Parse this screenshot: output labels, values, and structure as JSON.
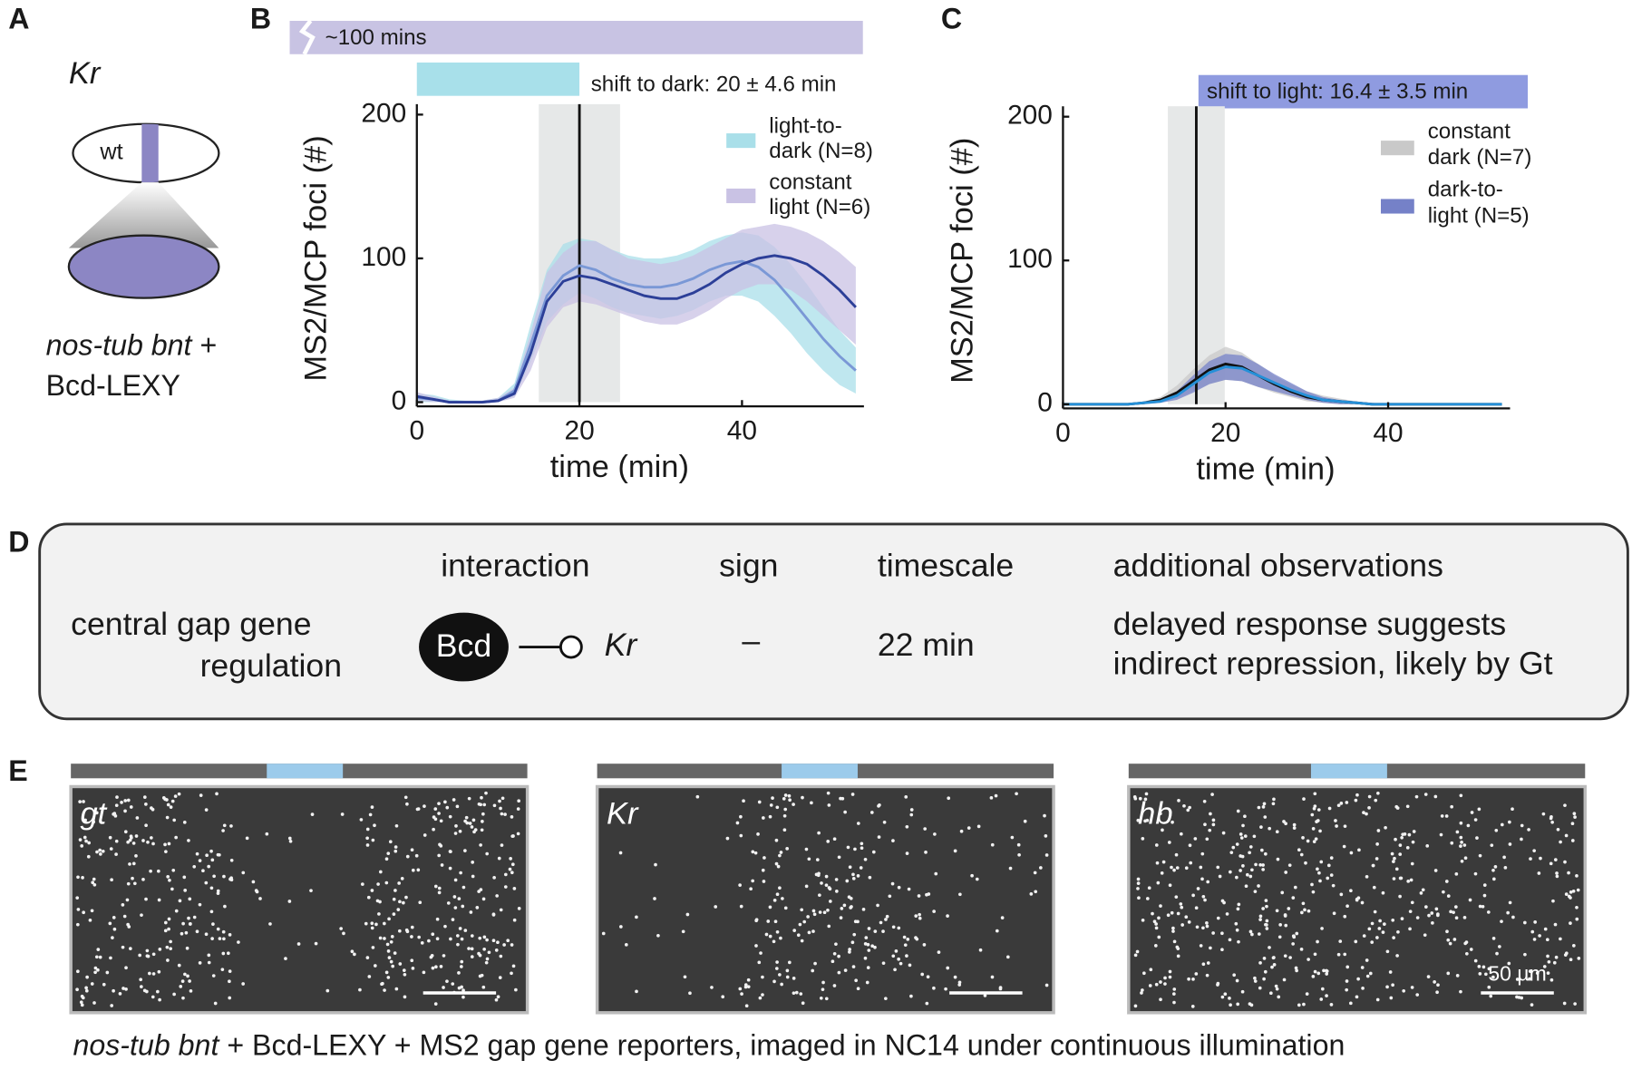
{
  "panel_labels": [
    "A",
    "B",
    "C",
    "D",
    "E"
  ],
  "panel_a": {
    "gene": "Kr",
    "embryo_label": "wt",
    "genotype_italic": "nos-tub bnt",
    "genotype_rest": " +",
    "construct": "Bcd-LEXY"
  },
  "chart_data": [
    {
      "type": "line",
      "timeline_label": "~100 mins",
      "shift_label": "shift to dark: 20 ± 4.6 min",
      "shift_time": 20,
      "shift_window": [
        15,
        25
      ],
      "shift_color": "#a8e0ea",
      "xlabel": "time (min)",
      "ylabel": "MS2/MCP foci (#)",
      "xlim": [
        0,
        55
      ],
      "ylim": [
        0,
        200
      ],
      "xticks": [
        0,
        20,
        40
      ],
      "yticks": [
        0,
        100,
        200
      ],
      "x": [
        0,
        2,
        4,
        6,
        8,
        10,
        12,
        14,
        16,
        18,
        20,
        22,
        24,
        26,
        28,
        30,
        32,
        34,
        36,
        38,
        40,
        42,
        44,
        46,
        48,
        50,
        52,
        54
      ],
      "series": [
        {
          "name": [
            "light-to-",
            "dark (N=8)"
          ],
          "color": "#7a98d6",
          "band_color": "#a9dfe9",
          "values": [
            3,
            2,
            0,
            0,
            0,
            1,
            8,
            40,
            74,
            88,
            95,
            92,
            86,
            82,
            80,
            80,
            82,
            86,
            92,
            96,
            98,
            94,
            85,
            72,
            58,
            44,
            32,
            22
          ],
          "lower": [
            0,
            0,
            0,
            0,
            0,
            0,
            4,
            28,
            56,
            68,
            76,
            72,
            66,
            62,
            60,
            58,
            60,
            64,
            70,
            74,
            74,
            70,
            60,
            48,
            34,
            22,
            12,
            6
          ],
          "upper": [
            6,
            5,
            2,
            1,
            1,
            3,
            13,
            54,
            92,
            110,
            114,
            112,
            106,
            102,
            100,
            100,
            102,
            106,
            112,
            116,
            118,
            116,
            108,
            96,
            82,
            66,
            50,
            38
          ]
        },
        {
          "name": [
            "constant",
            "light (N=6)"
          ],
          "color": "#2c3f98",
          "band_color": "#c9c2e4",
          "values": [
            4,
            2,
            0,
            0,
            0,
            1,
            6,
            34,
            70,
            84,
            88,
            86,
            82,
            78,
            74,
            72,
            72,
            76,
            82,
            90,
            96,
            100,
            102,
            100,
            96,
            88,
            78,
            66
          ],
          "lower": [
            1,
            0,
            0,
            0,
            0,
            0,
            3,
            22,
            52,
            66,
            70,
            68,
            64,
            60,
            56,
            54,
            54,
            58,
            64,
            72,
            78,
            82,
            82,
            78,
            70,
            60,
            50,
            40
          ],
          "upper": [
            7,
            4,
            1,
            1,
            1,
            3,
            10,
            48,
            90,
            104,
            112,
            112,
            106,
            100,
            98,
            96,
            98,
            102,
            108,
            114,
            120,
            122,
            124,
            122,
            118,
            112,
            104,
            94
          ]
        }
      ]
    },
    {
      "type": "line",
      "shift_label": "shift to light: 16.4 ± 3.5 min",
      "shift_time": 16.4,
      "shift_window": [
        12.9,
        19.9
      ],
      "shift_color": "#8f9be0",
      "xlabel": "time (min)",
      "ylabel": "MS2/MCP foci (#)",
      "xlim": [
        0,
        55
      ],
      "ylim": [
        0,
        200
      ],
      "xticks": [
        0,
        20,
        40
      ],
      "yticks": [
        0,
        100,
        200
      ],
      "x": [
        0,
        2,
        4,
        6,
        8,
        10,
        12,
        14,
        16,
        18,
        20,
        22,
        24,
        26,
        28,
        30,
        32,
        34,
        36,
        38,
        40,
        42,
        44,
        46,
        48,
        50,
        52,
        54
      ],
      "series": [
        {
          "name": [
            "constant",
            "dark (N=7)"
          ],
          "color": "#111111",
          "band_color": "#c9c9c9",
          "values": [
            0,
            0,
            0,
            0,
            0,
            1,
            3,
            8,
            16,
            24,
            28,
            26,
            20,
            14,
            9,
            5,
            3,
            2,
            1,
            0,
            0,
            0,
            0,
            0,
            0,
            0,
            0,
            0
          ],
          "lower": [
            0,
            0,
            0,
            0,
            0,
            0,
            1,
            4,
            9,
            14,
            17,
            16,
            12,
            8,
            5,
            2,
            1,
            0,
            0,
            0,
            0,
            0,
            0,
            0,
            0,
            0,
            0,
            0
          ],
          "upper": [
            0,
            0,
            0,
            0,
            0,
            2,
            5,
            13,
            24,
            34,
            40,
            36,
            28,
            20,
            14,
            9,
            6,
            4,
            2,
            1,
            0,
            0,
            0,
            0,
            0,
            0,
            0,
            0
          ]
        },
        {
          "name": [
            "dark-to-",
            "light (N=5)"
          ],
          "color": "#2590d8",
          "band_color": "#7581c8",
          "values": [
            0,
            0,
            0,
            0,
            0,
            1,
            2,
            6,
            14,
            22,
            26,
            25,
            20,
            15,
            10,
            6,
            3,
            2,
            1,
            0,
            0,
            0,
            0,
            0,
            0,
            0,
            0,
            0
          ],
          "lower": [
            0,
            0,
            0,
            0,
            0,
            0,
            1,
            3,
            8,
            14,
            17,
            16,
            12,
            9,
            6,
            3,
            1,
            0,
            0,
            0,
            0,
            0,
            0,
            0,
            0,
            0,
            0,
            0
          ],
          "upper": [
            0,
            0,
            0,
            0,
            0,
            2,
            3,
            9,
            20,
            30,
            35,
            34,
            28,
            21,
            15,
            9,
            5,
            3,
            2,
            1,
            0,
            0,
            0,
            0,
            0,
            0,
            0,
            0
          ]
        }
      ]
    }
  ],
  "panel_d": {
    "headers": [
      "interaction",
      "sign",
      "timescale",
      "additional observations"
    ],
    "process": [
      "central gap gene",
      "regulation"
    ],
    "regulator": "Bcd",
    "target": "Kr",
    "sign": "–",
    "timescale": "22 min",
    "observations": [
      "delayed response suggests",
      "indirect repression, likely by Gt"
    ]
  },
  "panel_e": {
    "images": [
      "gt",
      "Kr",
      "hb"
    ],
    "scale_bar": "50 µm",
    "caption_italic": "nos-tub bnt",
    "caption_rest": " + Bcd-LEXY + MS2 gap gene reporters, imaged in NC14 under continuous illumination"
  }
}
